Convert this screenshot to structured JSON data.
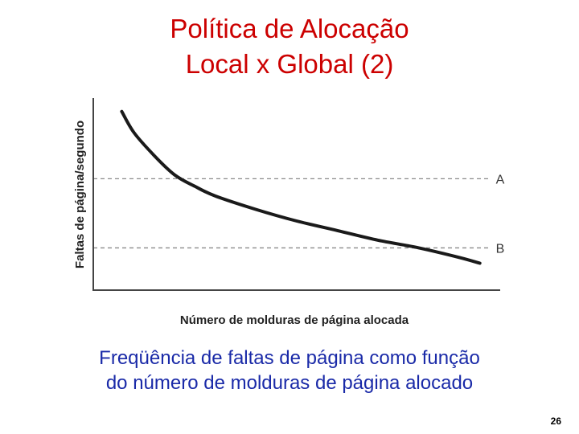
{
  "slide": {
    "title_line1": "Política de Alocação",
    "title_line2": "Local x Global (2)",
    "caption_line1": "Freqüência de faltas de página como função",
    "caption_line2": "do número de molduras de página alocado",
    "page_number": "26"
  },
  "colors": {
    "title": "#cc0000",
    "caption": "#1a2aa8",
    "curve": "#1a1a1a",
    "reference_line": "#8a8a8a"
  },
  "chart_data": {
    "type": "line",
    "title": "",
    "xlabel": "Número de molduras de página alocada",
    "ylabel": "Faltas de página/segundo",
    "xlim": [
      0,
      100
    ],
    "ylim": [
      0,
      100
    ],
    "tick_labels": "none",
    "grid": false,
    "series": [
      {
        "x": [
          7,
          10,
          15,
          20,
          25,
          30,
          40,
          50,
          60,
          70,
          80,
          90,
          95
        ],
        "y": [
          93,
          82,
          70,
          60,
          54,
          49,
          42,
          36,
          31,
          26,
          22,
          17,
          14
        ]
      }
    ],
    "reference_lines": [
      {
        "label": "A",
        "y": 58
      },
      {
        "label": "B",
        "y": 22
      }
    ]
  }
}
